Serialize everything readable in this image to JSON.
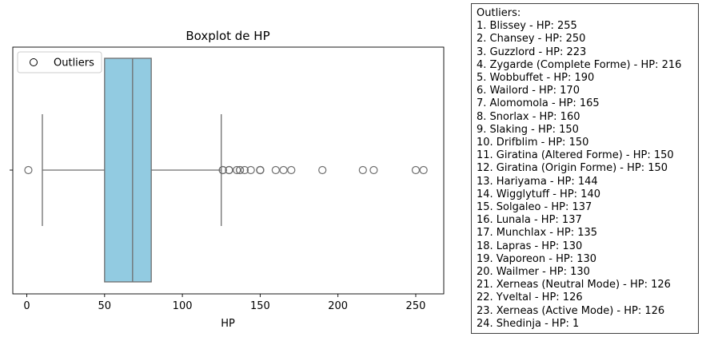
{
  "chart_data": {
    "type": "boxplot",
    "title": "Boxplot de HP",
    "xlabel": "HP",
    "ylabel": "",
    "xlim": [
      -9,
      268
    ],
    "xticks": [
      0,
      50,
      100,
      150,
      200,
      250
    ],
    "box": {
      "whisker_low": 10,
      "q1": 50,
      "median": 68,
      "q3": 80,
      "whisker_high": 125
    },
    "outlier_values": [
      1,
      126,
      126,
      126,
      130,
      130,
      130,
      135,
      137,
      137,
      140,
      144,
      150,
      150,
      150,
      150,
      160,
      165,
      170,
      190,
      216,
      223,
      250,
      255
    ],
    "legend": {
      "label": "Outliers",
      "placement": "top-left"
    },
    "colors": {
      "box_fill": "#92cbe1",
      "edge": "#6e6e6e",
      "axis": "#000000"
    }
  },
  "outliers_panel": {
    "heading": "Outliers:",
    "items": [
      "1. Blissey - HP: 255",
      "2. Chansey - HP: 250",
      "3. Guzzlord - HP: 223",
      "4. Zygarde (Complete Forme) - HP: 216",
      "5. Wobbuffet - HP: 190",
      "6. Wailord - HP: 170",
      "7. Alomomola - HP: 165",
      "8. Snorlax - HP: 160",
      "9. Slaking - HP: 150",
      "10. Drifblim - HP: 150",
      "11. Giratina (Altered Forme) - HP: 150",
      "12. Giratina (Origin Forme) - HP: 150",
      "13. Hariyama - HP: 144",
      "14. Wigglytuff - HP: 140",
      "15. Solgaleo - HP: 137",
      "16. Lunala - HP: 137",
      "17. Munchlax - HP: 135",
      "18. Lapras - HP: 130",
      "19. Vaporeon - HP: 130",
      "20. Wailmer - HP: 130",
      "21. Xerneas (Neutral Mode) - HP: 126",
      "22. Yveltal - HP: 126",
      "23. Xerneas (Active Mode) - HP: 126",
      "24. Shedinja - HP: 1"
    ]
  }
}
